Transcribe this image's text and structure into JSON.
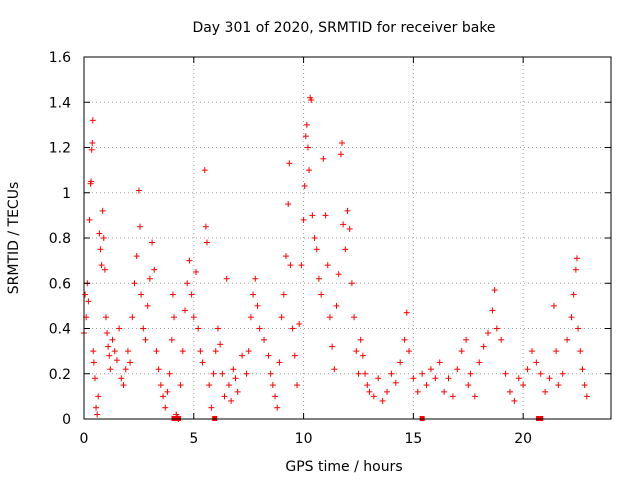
{
  "chart_data": {
    "type": "scatter",
    "title": "Day 301 of 2020, SRMTID for receiver bake",
    "xlabel": "GPS time / hours",
    "ylabel": "SRMTID / TECUs",
    "xlim": [
      0,
      24
    ],
    "ylim": [
      0,
      1.6
    ],
    "x_ticks": [
      0,
      5,
      10,
      15,
      20
    ],
    "x_tick_labels": [
      "0",
      "5",
      "10",
      "15",
      "20"
    ],
    "y_ticks": [
      0,
      0.2,
      0.4,
      0.6,
      0.8,
      1.0,
      1.2,
      1.4,
      1.6
    ],
    "y_tick_labels": [
      "0",
      "0.2",
      "0.4",
      "0.6",
      "0.8",
      "1",
      "1.2",
      "1.4",
      "1.6"
    ],
    "grid": true,
    "marker": "plus",
    "color": "#ff0000",
    "series": [
      {
        "name": "SRMTID",
        "points": [
          [
            0.0,
            0.38
          ],
          [
            0.05,
            0.55
          ],
          [
            0.1,
            0.45
          ],
          [
            0.15,
            0.6
          ],
          [
            0.2,
            0.52
          ],
          [
            0.25,
            0.88
          ],
          [
            0.3,
            1.04
          ],
          [
            0.32,
            1.05
          ],
          [
            0.35,
            1.19
          ],
          [
            0.38,
            1.22
          ],
          [
            0.4,
            1.32
          ],
          [
            0.42,
            0.3
          ],
          [
            0.45,
            0.25
          ],
          [
            0.5,
            0.18
          ],
          [
            0.55,
            0.05
          ],
          [
            0.6,
            0.02
          ],
          [
            0.65,
            0.1
          ],
          [
            0.7,
            0.82
          ],
          [
            0.75,
            0.75
          ],
          [
            0.8,
            0.68
          ],
          [
            0.85,
            0.92
          ],
          [
            0.9,
            0.8
          ],
          [
            0.95,
            0.66
          ],
          [
            1.0,
            0.45
          ],
          [
            1.05,
            0.38
          ],
          [
            1.1,
            0.32
          ],
          [
            1.15,
            0.28
          ],
          [
            1.2,
            0.22
          ],
          [
            1.3,
            0.35
          ],
          [
            1.4,
            0.3
          ],
          [
            1.5,
            0.26
          ],
          [
            1.6,
            0.4
          ],
          [
            1.7,
            0.18
          ],
          [
            1.8,
            0.15
          ],
          [
            1.9,
            0.22
          ],
          [
            2.0,
            0.3
          ],
          [
            2.1,
            0.25
          ],
          [
            2.2,
            0.45
          ],
          [
            2.3,
            0.6
          ],
          [
            2.4,
            0.72
          ],
          [
            2.5,
            1.01
          ],
          [
            2.55,
            0.85
          ],
          [
            2.6,
            0.55
          ],
          [
            2.7,
            0.4
          ],
          [
            2.8,
            0.35
          ],
          [
            2.9,
            0.5
          ],
          [
            3.0,
            0.62
          ],
          [
            3.1,
            0.78
          ],
          [
            3.2,
            0.66
          ],
          [
            3.3,
            0.3
          ],
          [
            3.4,
            0.22
          ],
          [
            3.5,
            0.15
          ],
          [
            3.6,
            0.1
          ],
          [
            3.7,
            0.05
          ],
          [
            3.8,
            0.12
          ],
          [
            3.9,
            0.2
          ],
          [
            4.0,
            0.35
          ],
          [
            4.05,
            0.55
          ],
          [
            4.1,
            0.45
          ],
          [
            4.2,
            0.02
          ],
          [
            4.25,
            0.01
          ],
          [
            4.3,
            0.0
          ],
          [
            4.4,
            0.15
          ],
          [
            4.5,
            0.3
          ],
          [
            4.6,
            0.48
          ],
          [
            4.7,
            0.6
          ],
          [
            4.8,
            0.7
          ],
          [
            4.9,
            0.55
          ],
          [
            5.0,
            0.45
          ],
          [
            5.1,
            0.65
          ],
          [
            5.2,
            0.4
          ],
          [
            5.3,
            0.3
          ],
          [
            5.4,
            0.25
          ],
          [
            5.5,
            1.1
          ],
          [
            5.55,
            0.85
          ],
          [
            5.6,
            0.78
          ],
          [
            5.7,
            0.15
          ],
          [
            5.8,
            0.05
          ],
          [
            5.9,
            0.2
          ],
          [
            6.0,
            0.3
          ],
          [
            6.1,
            0.4
          ],
          [
            6.2,
            0.33
          ],
          [
            6.3,
            0.2
          ],
          [
            6.4,
            0.1
          ],
          [
            6.5,
            0.62
          ],
          [
            6.6,
            0.15
          ],
          [
            6.7,
            0.08
          ],
          [
            6.8,
            0.22
          ],
          [
            6.9,
            0.18
          ],
          [
            7.0,
            0.12
          ],
          [
            7.2,
            0.28
          ],
          [
            7.4,
            0.2
          ],
          [
            7.5,
            0.3
          ],
          [
            7.6,
            0.45
          ],
          [
            7.7,
            0.55
          ],
          [
            7.8,
            0.62
          ],
          [
            7.9,
            0.5
          ],
          [
            8.0,
            0.4
          ],
          [
            8.2,
            0.35
          ],
          [
            8.4,
            0.28
          ],
          [
            8.5,
            0.2
          ],
          [
            8.6,
            0.15
          ],
          [
            8.7,
            0.1
          ],
          [
            8.8,
            0.05
          ],
          [
            8.9,
            0.25
          ],
          [
            9.0,
            0.45
          ],
          [
            9.1,
            0.55
          ],
          [
            9.2,
            0.72
          ],
          [
            9.3,
            0.95
          ],
          [
            9.35,
            1.13
          ],
          [
            9.4,
            0.68
          ],
          [
            9.5,
            0.4
          ],
          [
            9.6,
            0.28
          ],
          [
            9.7,
            0.15
          ],
          [
            9.8,
            0.42
          ],
          [
            9.9,
            0.68
          ],
          [
            10.0,
            0.88
          ],
          [
            10.05,
            1.03
          ],
          [
            10.1,
            1.25
          ],
          [
            10.15,
            1.3
          ],
          [
            10.2,
            1.2
          ],
          [
            10.25,
            1.1
          ],
          [
            10.3,
            1.42
          ],
          [
            10.35,
            1.41
          ],
          [
            10.4,
            0.9
          ],
          [
            10.5,
            0.8
          ],
          [
            10.6,
            0.75
          ],
          [
            10.7,
            0.62
          ],
          [
            10.8,
            0.55
          ],
          [
            10.9,
            1.15
          ],
          [
            11.0,
            0.9
          ],
          [
            11.1,
            0.68
          ],
          [
            11.2,
            0.45
          ],
          [
            11.3,
            0.32
          ],
          [
            11.4,
            0.22
          ],
          [
            11.5,
            0.5
          ],
          [
            11.6,
            0.64
          ],
          [
            11.7,
            1.17
          ],
          [
            11.75,
            1.22
          ],
          [
            11.8,
            0.86
          ],
          [
            11.9,
            0.75
          ],
          [
            12.0,
            0.92
          ],
          [
            12.1,
            0.84
          ],
          [
            12.2,
            0.6
          ],
          [
            12.3,
            0.45
          ],
          [
            12.4,
            0.3
          ],
          [
            12.5,
            0.2
          ],
          [
            12.6,
            0.35
          ],
          [
            12.7,
            0.28
          ],
          [
            12.8,
            0.2
          ],
          [
            12.9,
            0.15
          ],
          [
            13.0,
            0.12
          ],
          [
            13.2,
            0.1
          ],
          [
            13.4,
            0.18
          ],
          [
            13.6,
            0.08
          ],
          [
            13.8,
            0.12
          ],
          [
            14.0,
            0.2
          ],
          [
            14.2,
            0.16
          ],
          [
            14.4,
            0.25
          ],
          [
            14.6,
            0.35
          ],
          [
            14.7,
            0.47
          ],
          [
            14.8,
            0.3
          ],
          [
            15.0,
            0.18
          ],
          [
            15.2,
            0.12
          ],
          [
            15.4,
            0.2
          ],
          [
            15.6,
            0.15
          ],
          [
            15.8,
            0.22
          ],
          [
            16.0,
            0.18
          ],
          [
            16.2,
            0.25
          ],
          [
            16.4,
            0.12
          ],
          [
            16.6,
            0.18
          ],
          [
            16.8,
            0.1
          ],
          [
            17.0,
            0.22
          ],
          [
            17.2,
            0.3
          ],
          [
            17.4,
            0.35
          ],
          [
            17.5,
            0.15
          ],
          [
            17.6,
            0.2
          ],
          [
            17.8,
            0.1
          ],
          [
            18.0,
            0.25
          ],
          [
            18.2,
            0.32
          ],
          [
            18.4,
            0.38
          ],
          [
            18.6,
            0.48
          ],
          [
            18.7,
            0.57
          ],
          [
            18.8,
            0.4
          ],
          [
            19.0,
            0.35
          ],
          [
            19.2,
            0.2
          ],
          [
            19.4,
            0.12
          ],
          [
            19.6,
            0.08
          ],
          [
            19.8,
            0.18
          ],
          [
            20.0,
            0.15
          ],
          [
            20.2,
            0.22
          ],
          [
            20.4,
            0.3
          ],
          [
            20.6,
            0.25
          ],
          [
            20.8,
            0.2
          ],
          [
            21.0,
            0.12
          ],
          [
            21.2,
            0.18
          ],
          [
            21.4,
            0.5
          ],
          [
            21.5,
            0.3
          ],
          [
            21.6,
            0.15
          ],
          [
            21.8,
            0.2
          ],
          [
            22.0,
            0.35
          ],
          [
            22.2,
            0.45
          ],
          [
            22.3,
            0.55
          ],
          [
            22.4,
            0.66
          ],
          [
            22.45,
            0.71
          ],
          [
            22.5,
            0.4
          ],
          [
            22.6,
            0.3
          ],
          [
            22.7,
            0.22
          ],
          [
            22.8,
            0.15
          ],
          [
            22.9,
            0.1
          ]
        ]
      }
    ],
    "gap_markers": [
      4.1,
      4.3,
      5.95,
      15.4,
      20.7,
      20.8
    ]
  }
}
